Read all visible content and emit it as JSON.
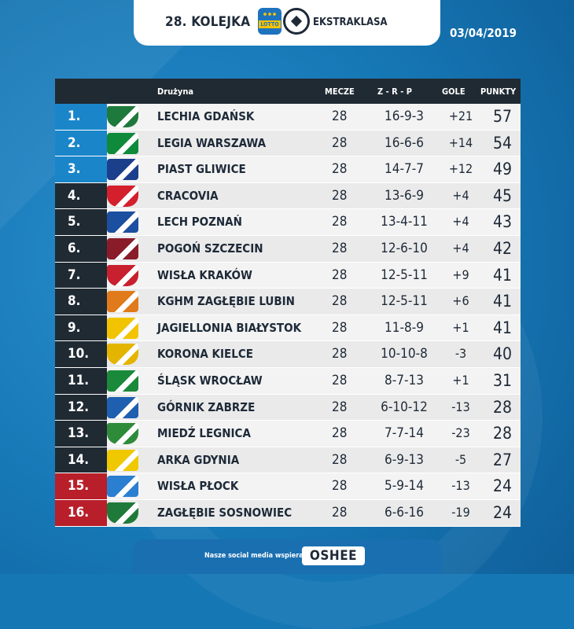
{
  "header": {
    "round": "28. KOLEJKA",
    "lotto_label": "LOTTO",
    "league": "EKSTRAKLASA",
    "date": "03/04/2019"
  },
  "table": {
    "columns": {
      "team": "Drużyna",
      "mecze": "MECZE",
      "zrp": "Z - R - P",
      "gole": "GOLE",
      "punkty": "PUNKTY"
    },
    "rows": [
      {
        "pos": "1.",
        "team": "LECHIA GDAŃSK",
        "mecze": "28",
        "zrp": "16-9-3",
        "gole": "+21",
        "pkt": "57",
        "zone": "blue",
        "crest": "#1e7a3c"
      },
      {
        "pos": "2.",
        "team": "LEGIA WARSZAWA",
        "mecze": "28",
        "zrp": "16-6-6",
        "gole": "+14",
        "pkt": "54",
        "zone": "blue",
        "crest": "#0f8a3b"
      },
      {
        "pos": "3.",
        "team": "PIAST GLIWICE",
        "mecze": "28",
        "zrp": "14-7-7",
        "gole": "+12",
        "pkt": "49",
        "zone": "blue",
        "crest": "#1c3f8c"
      },
      {
        "pos": "4.",
        "team": "CRACOVIA",
        "mecze": "28",
        "zrp": "13-6-9",
        "gole": "+4",
        "pkt": "45",
        "zone": "dark",
        "crest": "#d3202c"
      },
      {
        "pos": "5.",
        "team": "LECH POZNAŃ",
        "mecze": "28",
        "zrp": "13-4-11",
        "gole": "+4",
        "pkt": "43",
        "zone": "dark",
        "crest": "#1b4fa0"
      },
      {
        "pos": "6.",
        "team": "POGOŃ SZCZECIN",
        "mecze": "28",
        "zrp": "12-6-10",
        "gole": "+4",
        "pkt": "42",
        "zone": "dark",
        "crest": "#8a1c2a"
      },
      {
        "pos": "7.",
        "team": "WISŁA KRAKÓW",
        "mecze": "28",
        "zrp": "12-5-11",
        "gole": "+9",
        "pkt": "41",
        "zone": "dark",
        "crest": "#c8202f"
      },
      {
        "pos": "8.",
        "team": "KGHM ZAGŁĘBIE LUBIN",
        "mecze": "28",
        "zrp": "12-5-11",
        "gole": "+6",
        "pkt": "41",
        "zone": "dark",
        "crest": "#e07a1a"
      },
      {
        "pos": "9.",
        "team": "JAGIELLONIA BIAŁYSTOK",
        "mecze": "28",
        "zrp": "11-8-9",
        "gole": "+1",
        "pkt": "41",
        "zone": "dark",
        "crest": "#f2c400"
      },
      {
        "pos": "10.",
        "team": "KORONA KIELCE",
        "mecze": "28",
        "zrp": "10-10-8",
        "gole": "-3",
        "pkt": "40",
        "zone": "dark",
        "crest": "#e4b500"
      },
      {
        "pos": "11.",
        "team": "ŚLĄSK WROCŁAW",
        "mecze": "28",
        "zrp": "8-7-13",
        "gole": "+1",
        "pkt": "31",
        "zone": "dark",
        "crest": "#1a8a3a"
      },
      {
        "pos": "12.",
        "team": "GÓRNIK ZABRZE",
        "mecze": "28",
        "zrp": "6-10-12",
        "gole": "-13",
        "pkt": "28",
        "zone": "dark",
        "crest": "#1e5fb0"
      },
      {
        "pos": "13.",
        "team": "MIEDŹ LEGNICA",
        "mecze": "28",
        "zrp": "7-7-14",
        "gole": "-23",
        "pkt": "28",
        "zone": "dark",
        "crest": "#2e8b3a"
      },
      {
        "pos": "14.",
        "team": "ARKA GDYNIA",
        "mecze": "28",
        "zrp": "6-9-13",
        "gole": "-5",
        "pkt": "27",
        "zone": "dark",
        "crest": "#f0c800"
      },
      {
        "pos": "15.",
        "team": "WISŁA PŁOCK",
        "mecze": "28",
        "zrp": "5-9-14",
        "gole": "-13",
        "pkt": "24",
        "zone": "red",
        "crest": "#2a7fd0"
      },
      {
        "pos": "16.",
        "team": "ZAGŁĘBIE SOSNOWIEC",
        "mecze": "28",
        "zrp": "6-6-16",
        "gole": "-19",
        "pkt": "24",
        "zone": "red",
        "crest": "#1f7a3a"
      }
    ]
  },
  "footer": {
    "note": "Nasze social media wspiera marka",
    "brand": "OSHEE"
  }
}
